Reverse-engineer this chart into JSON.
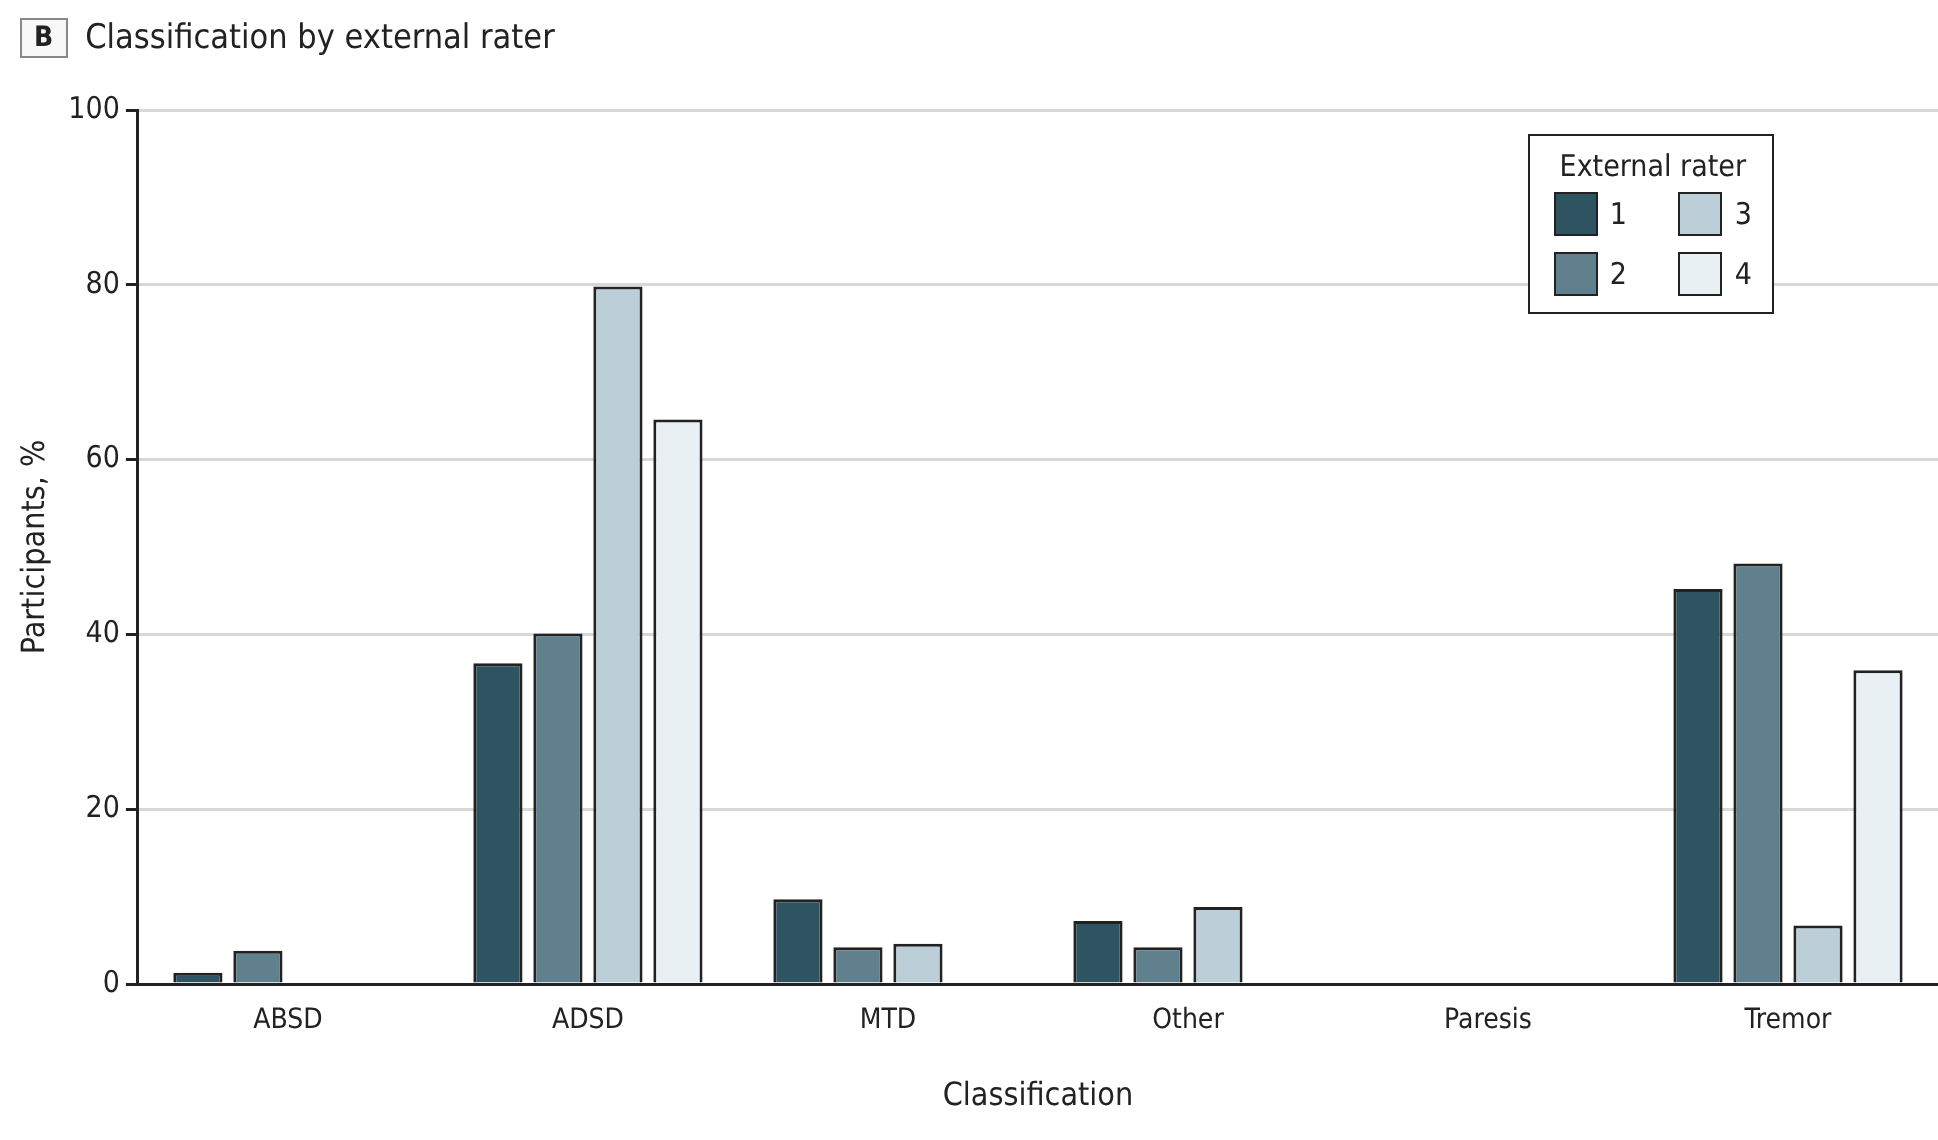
{
  "chart_data": {
    "type": "bar",
    "title": "Classification by external rater",
    "annotations": [
      "B"
    ],
    "xlabel": "Classification",
    "ylabel": "Participants, %",
    "legend_title": "External rater",
    "categories": [
      "ABSD",
      "ADSD",
      "MTD",
      "Other",
      "Paresis",
      "Tremor"
    ],
    "series": [
      {
        "name": "1",
        "color": "#2f5461",
        "values": [
          1.3,
          36.7,
          9.7,
          7.2,
          0,
          45.2
        ]
      },
      {
        "name": "2",
        "color": "#5f808c",
        "values": [
          3.8,
          40.1,
          4.2,
          4.2,
          0,
          48.1
        ]
      },
      {
        "name": "3",
        "color": "#bccfd8",
        "values": [
          0,
          79.8,
          4.6,
          8.8,
          0,
          6.7
        ]
      },
      {
        "name": "4",
        "color": "#e8f0f3",
        "values": [
          0,
          64.6,
          0,
          0,
          0,
          35.9
        ]
      }
    ],
    "ylim": [
      0,
      100
    ],
    "yticks": [
      0,
      20,
      40,
      60,
      80,
      100
    ],
    "grid": "y",
    "legend": "top right"
  }
}
